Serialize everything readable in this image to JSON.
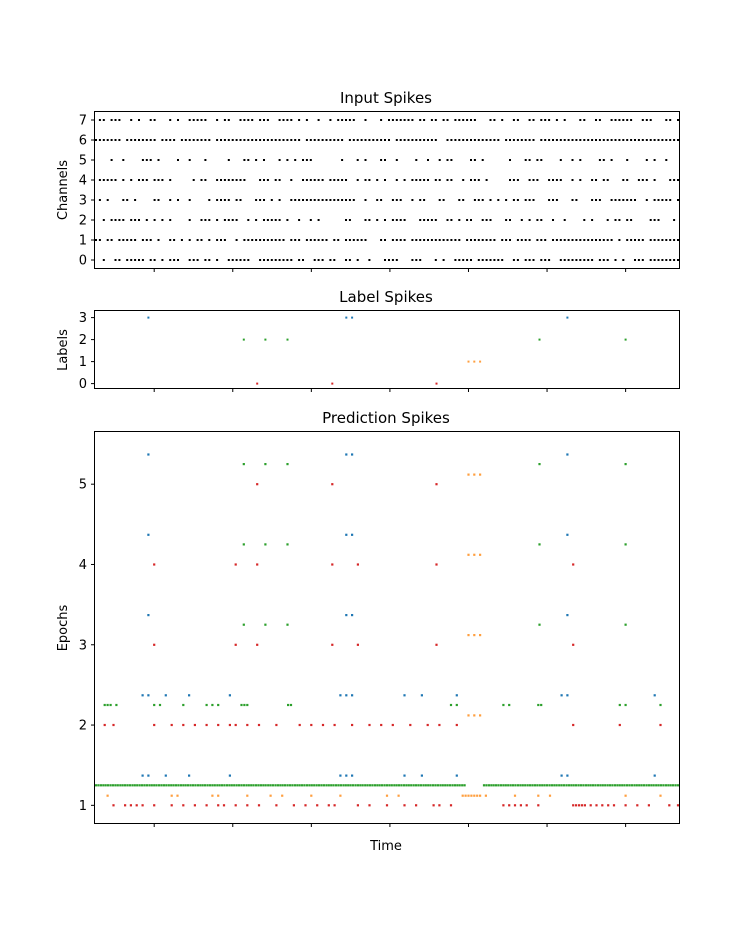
{
  "colors": {
    "input": "#000000",
    "class0": "#d62728",
    "class1": "#ff9f3f",
    "class2": "#2ca02c",
    "class3": "#1f77b4"
  },
  "chart_data": [
    {
      "type": "scatter",
      "title": "Input Spikes",
      "xlabel": "",
      "ylabel": "Channels",
      "ylim": [
        -0.4,
        7.4
      ],
      "yticks": [
        "0",
        "1",
        "2",
        "3",
        "4",
        "5",
        "6",
        "7"
      ],
      "grid": false,
      "rows": [
        {
          "channel": 0,
          "density": 0.62
        },
        {
          "channel": 1,
          "density": 0.8
        },
        {
          "channel": 2,
          "density": 0.55
        },
        {
          "channel": 3,
          "density": 0.6
        },
        {
          "channel": 4,
          "density": 0.55
        },
        {
          "channel": 5,
          "density": 0.35
        },
        {
          "channel": 6,
          "density": 0.93
        },
        {
          "channel": 7,
          "density": 0.6
        }
      ]
    },
    {
      "type": "scatter",
      "title": "Label Spikes",
      "xlabel": "",
      "ylabel": "Labels",
      "ylim": [
        -0.2,
        3.3
      ],
      "yticks": [
        "0",
        "1",
        "2",
        "3"
      ],
      "grid": false,
      "points": [
        {
          "x": 0.09,
          "y": 3,
          "label": 3
        },
        {
          "x": 0.43,
          "y": 3,
          "label": 3
        },
        {
          "x": 0.44,
          "y": 3,
          "label": 3
        },
        {
          "x": 0.81,
          "y": 3,
          "label": 3
        },
        {
          "x": 0.254,
          "y": 2,
          "label": 2
        },
        {
          "x": 0.291,
          "y": 2,
          "label": 2
        },
        {
          "x": 0.329,
          "y": 2,
          "label": 2
        },
        {
          "x": 0.762,
          "y": 2,
          "label": 2
        },
        {
          "x": 0.91,
          "y": 2,
          "label": 2
        },
        {
          "x": 0.64,
          "y": 1,
          "label": 1
        },
        {
          "x": 0.65,
          "y": 1,
          "label": 1
        },
        {
          "x": 0.66,
          "y": 1,
          "label": 1
        },
        {
          "x": 0.277,
          "y": 0,
          "label": 0
        },
        {
          "x": 0.406,
          "y": 0,
          "label": 0
        },
        {
          "x": 0.585,
          "y": 0,
          "label": 0
        }
      ]
    },
    {
      "type": "scatter",
      "title": "Prediction Spikes",
      "xlabel": "Time",
      "ylabel": "Epochs",
      "ylim": [
        0.78,
        5.65
      ],
      "yticks": [
        "1",
        "2",
        "3",
        "4",
        "5"
      ],
      "grid": false,
      "class_offsets": {
        "0": 0.0,
        "1": 0.12,
        "2": 0.25,
        "3": 0.37
      },
      "epochs": [
        {
          "epoch": 1,
          "class0": [
            0.03,
            0.05,
            0.06,
            0.07,
            0.08,
            0.1,
            0.13,
            0.15,
            0.17,
            0.19,
            0.21,
            0.22,
            0.24,
            0.26,
            0.28,
            0.31,
            0.34,
            0.36,
            0.38,
            0.4,
            0.41,
            0.45,
            0.47,
            0.5,
            0.53,
            0.55,
            0.58,
            0.59,
            0.61,
            0.7,
            0.71,
            0.72,
            0.73,
            0.74,
            0.76,
            0.82,
            0.825,
            0.83,
            0.835,
            0.84,
            0.85,
            0.86,
            0.87,
            0.88,
            0.89,
            0.91,
            0.93,
            0.95,
            0.985,
            1.0
          ],
          "class1": [
            0.02,
            0.13,
            0.14,
            0.2,
            0.21,
            0.26,
            0.3,
            0.32,
            0.37,
            0.42,
            0.5,
            0.52,
            0.63,
            0.635,
            0.64,
            0.645,
            0.65,
            0.655,
            0.66,
            0.67,
            0.72,
            0.76,
            0.78,
            0.91,
            0.97
          ],
          "class2_dense": true,
          "class3": [
            0.08,
            0.09,
            0.12,
            0.16,
            0.23,
            0.42,
            0.43,
            0.44,
            0.53,
            0.56,
            0.62,
            0.8,
            0.81,
            0.96
          ]
        },
        {
          "epoch": 2,
          "class0": [
            0.015,
            0.03,
            0.1,
            0.13,
            0.15,
            0.17,
            0.19,
            0.21,
            0.23,
            0.24,
            0.26,
            0.28,
            0.31,
            0.35,
            0.37,
            0.39,
            0.41,
            0.44,
            0.47,
            0.49,
            0.51,
            0.54,
            0.57,
            0.59,
            0.62,
            0.82,
            0.9,
            0.97
          ],
          "class1": [
            0.64,
            0.65,
            0.66
          ],
          "class2": [
            0.015,
            0.02,
            0.025,
            0.035,
            0.1,
            0.11,
            0.15,
            0.19,
            0.2,
            0.21,
            0.25,
            0.255,
            0.26,
            0.33,
            0.335,
            0.61,
            0.62,
            0.7,
            0.71,
            0.76,
            0.765,
            0.9,
            0.91,
            0.97
          ],
          "class3": [
            0.08,
            0.09,
            0.12,
            0.16,
            0.23,
            0.42,
            0.43,
            0.44,
            0.53,
            0.56,
            0.62,
            0.8,
            0.81,
            0.96
          ]
        },
        {
          "epoch": 3,
          "class0": [
            0.1,
            0.24,
            0.277,
            0.406,
            0.45,
            0.585,
            0.82
          ],
          "class1": [
            0.64,
            0.65,
            0.66
          ],
          "class2": [
            0.254,
            0.291,
            0.329,
            0.762,
            0.91
          ],
          "class3": [
            0.09,
            0.43,
            0.44,
            0.81
          ]
        },
        {
          "epoch": 4,
          "class0": [
            0.1,
            0.24,
            0.277,
            0.406,
            0.45,
            0.585,
            0.82
          ],
          "class1": [
            0.64,
            0.65,
            0.66
          ],
          "class2": [
            0.254,
            0.291,
            0.329,
            0.762,
            0.91
          ],
          "class3": [
            0.09,
            0.43,
            0.44,
            0.81
          ]
        },
        {
          "epoch": 5,
          "class0": [
            0.277,
            0.406,
            0.585
          ],
          "class1": [
            0.64,
            0.65,
            0.66
          ],
          "class2": [
            0.254,
            0.291,
            0.329,
            0.762,
            0.91
          ],
          "class3": [
            0.09,
            0.43,
            0.44,
            0.81
          ]
        }
      ]
    }
  ]
}
